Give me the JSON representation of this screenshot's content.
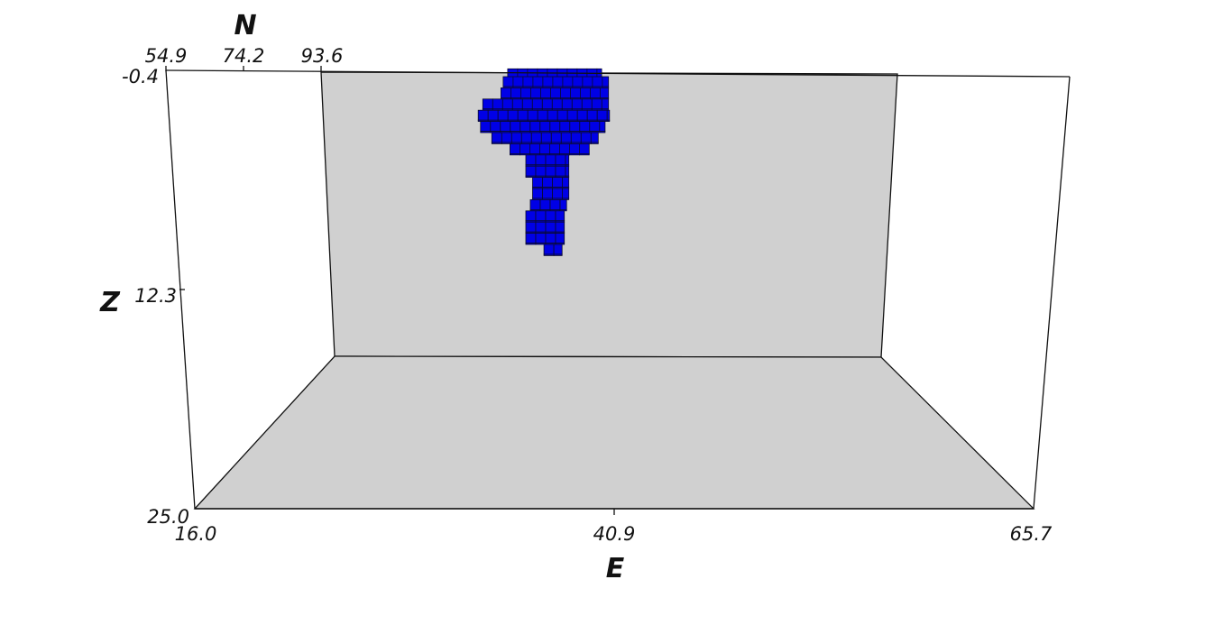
{
  "chart_data": {
    "type": "3d-voxel",
    "axes": {
      "E": {
        "label": "E",
        "ticks": [
          "16.0",
          "40.9",
          "65.7"
        ],
        "range": [
          16.0,
          65.7
        ]
      },
      "N": {
        "label": "N",
        "ticks": [
          "54.9",
          "74.2",
          "93.6"
        ],
        "range": [
          54.9,
          93.6
        ]
      },
      "Z": {
        "label": "Z",
        "ticks": [
          "-0.4",
          "12.3",
          "25.0"
        ],
        "range": [
          -0.4,
          25.0
        ]
      }
    },
    "body": {
      "color": "#0000e6",
      "profile": [
        {
          "z": -0.2,
          "e": [
            32.0,
            40.3
          ]
        },
        {
          "z": 0.5,
          "e": [
            31.6,
            40.9
          ]
        },
        {
          "z": 1.5,
          "e": [
            31.4,
            40.9
          ]
        },
        {
          "z": 2.5,
          "e": [
            29.8,
            40.9
          ]
        },
        {
          "z": 3.5,
          "e": [
            29.4,
            41.0
          ]
        },
        {
          "z": 4.5,
          "e": [
            29.6,
            40.6
          ]
        },
        {
          "z": 5.5,
          "e": [
            30.6,
            40.0
          ]
        },
        {
          "z": 6.5,
          "e": [
            32.2,
            39.2
          ]
        },
        {
          "z": 7.5,
          "e": [
            33.6,
            37.4
          ]
        },
        {
          "z": 8.5,
          "e": [
            33.6,
            37.4
          ]
        },
        {
          "z": 9.5,
          "e": [
            34.2,
            37.4
          ]
        },
        {
          "z": 10.5,
          "e": [
            34.2,
            37.4
          ]
        },
        {
          "z": 11.5,
          "e": [
            34.0,
            37.2
          ]
        },
        {
          "z": 12.5,
          "e": [
            33.6,
            37.0
          ]
        },
        {
          "z": 13.5,
          "e": [
            33.6,
            37.0
          ]
        },
        {
          "z": 14.5,
          "e": [
            33.6,
            37.0
          ]
        },
        {
          "z": 15.5,
          "e": [
            35.2,
            36.8
          ]
        }
      ]
    }
  },
  "labels": {
    "e_title": "E",
    "n_title": "N",
    "z_title": "Z",
    "e_ticks": [
      "16.0",
      "40.9",
      "65.7"
    ],
    "n_ticks": [
      "54.9",
      "74.2",
      "93.6"
    ],
    "z_ticks": [
      "-0.4",
      "12.3",
      "25.0"
    ]
  }
}
